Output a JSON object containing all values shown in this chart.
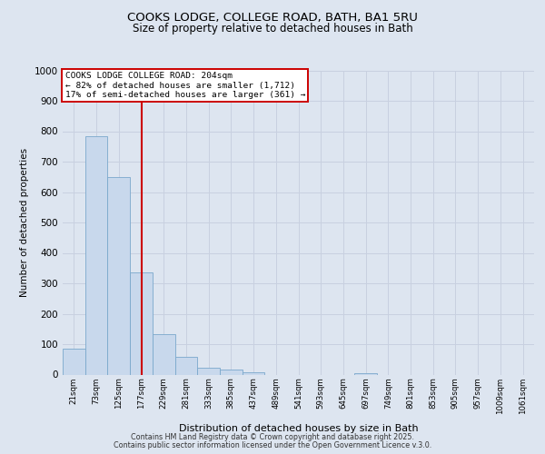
{
  "title": "COOKS LODGE, COLLEGE ROAD, BATH, BA1 5RU",
  "subtitle": "Size of property relative to detached houses in Bath",
  "xlabel": "Distribution of detached houses by size in Bath",
  "ylabel": "Number of detached properties",
  "bar_values": [
    85,
    785,
    648,
    335,
    133,
    57,
    22,
    15,
    7,
    0,
    0,
    0,
    0,
    5,
    0,
    0,
    0,
    0,
    0,
    0,
    0
  ],
  "bar_labels": [
    "21sqm",
    "73sqm",
    "125sqm",
    "177sqm",
    "229sqm",
    "281sqm",
    "333sqm",
    "385sqm",
    "437sqm",
    "489sqm",
    "541sqm",
    "593sqm",
    "645sqm",
    "697sqm",
    "749sqm",
    "801sqm",
    "853sqm",
    "905sqm",
    "957sqm",
    "1009sqm",
    "1061sqm"
  ],
  "bar_color": "#c8d8ec",
  "bar_edge_color": "#7aa8cc",
  "vline_color": "#cc0000",
  "ylim": [
    0,
    1000
  ],
  "yticks": [
    0,
    100,
    200,
    300,
    400,
    500,
    600,
    700,
    800,
    900,
    1000
  ],
  "annotation_title": "COOKS LODGE COLLEGE ROAD: 204sqm",
  "annotation_line1": "← 82% of detached houses are smaller (1,712)",
  "annotation_line2": "17% of semi-detached houses are larger (361) →",
  "annotation_box_color": "#ffffff",
  "annotation_box_edge": "#cc0000",
  "grid_color": "#c8d0e0",
  "background_color": "#dde5f0",
  "footer1": "Contains HM Land Registry data © Crown copyright and database right 2025.",
  "footer2": "Contains public sector information licensed under the Open Government Licence v.3.0."
}
